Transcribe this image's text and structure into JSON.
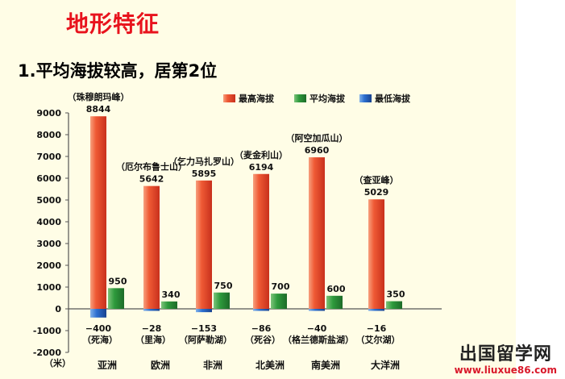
{
  "slide": {
    "title": "地形特征",
    "subtitle": "1.平均海拔较高，居第2位"
  },
  "watermark": {
    "text": "出国留学网",
    "url": "www.liuxue86.com"
  },
  "colors": {
    "max": "#e8492c",
    "avg": "#2e8b3a",
    "min": "#1f5fb8"
  },
  "chart_data": {
    "type": "bar",
    "categories": [
      "亚洲",
      "欧洲",
      "非洲",
      "北美洲",
      "南美洲",
      "大洋洲"
    ],
    "series": [
      {
        "name": "最高海拔",
        "values": [
          8844,
          5642,
          5895,
          6194,
          6960,
          5029
        ]
      },
      {
        "name": "平均海拔",
        "values": [
          950,
          340,
          750,
          700,
          600,
          350
        ]
      },
      {
        "name": "最低海拔",
        "values": [
          -400,
          -28,
          -153,
          -86,
          -40,
          -16
        ]
      }
    ],
    "value_labels": {
      "max": [
        "8844",
        "5642",
        "5895",
        "6194",
        "6960",
        "5029"
      ],
      "avg": [
        "950",
        "340",
        "750",
        "700",
        "600",
        "350"
      ],
      "min": [
        "−400",
        "−28",
        "−153",
        "−86",
        "−40",
        "−16"
      ]
    },
    "peak_names": [
      "（珠穆朗玛峰）",
      "（厄尔布鲁士山）",
      "（乞力马扎罗山）",
      "（麦金利山）",
      "（阿空加瓜山）",
      "（查亚峰）"
    ],
    "low_names": [
      "（死海）",
      "（里海）",
      "（阿萨勒湖）",
      "（死谷）",
      "（格兰德斯盐湖）",
      "（艾尔湖）"
    ],
    "yticks": [
      "9000",
      "8000",
      "7000",
      "6000",
      "5000",
      "4000",
      "3000",
      "2000",
      "1000",
      "0",
      "-1000",
      "-2000"
    ],
    "ylim": [
      -2000,
      9000
    ],
    "ylabel": "（米）",
    "legend_position": "top-right"
  }
}
